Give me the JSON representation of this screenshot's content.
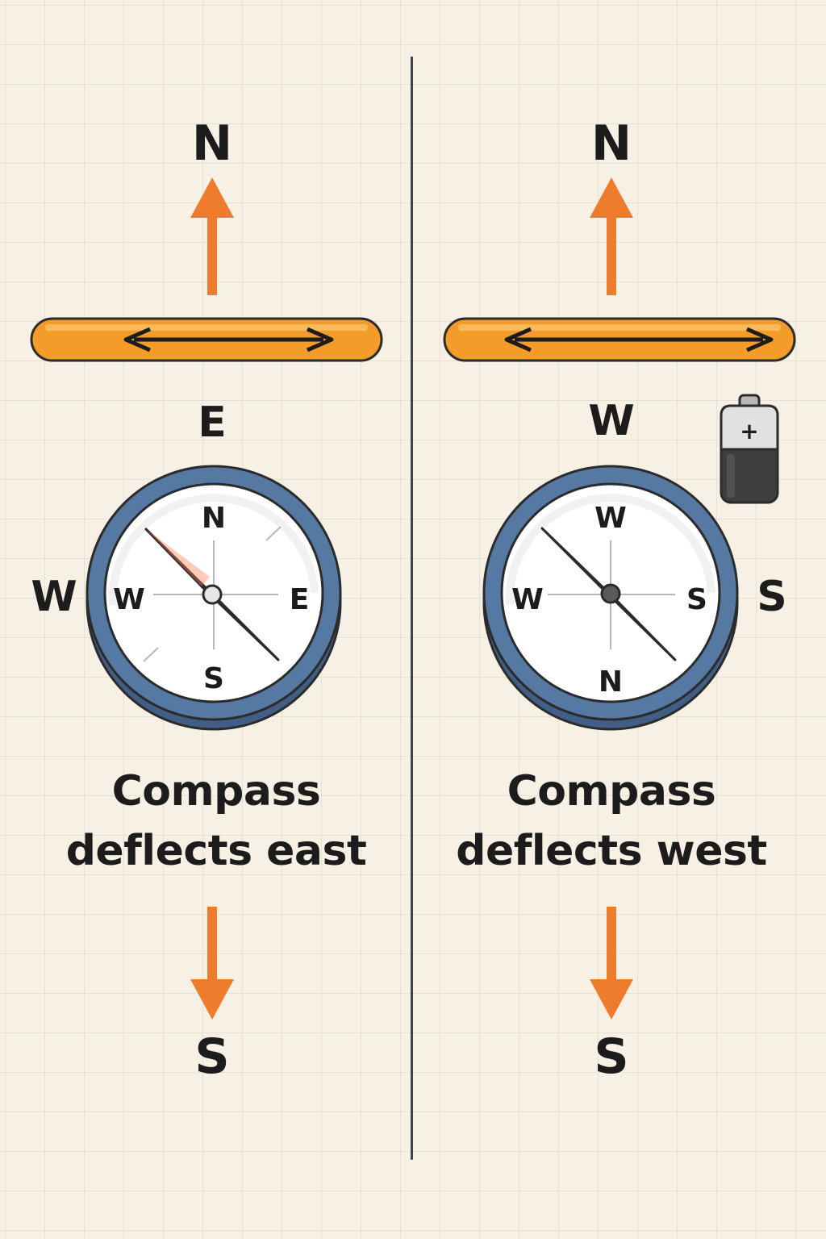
{
  "left": {
    "top_label": "N",
    "bottom_label": "S",
    "wire_label": "E",
    "outer_left_label": "W",
    "dial": {
      "north": "N",
      "west": "W",
      "east": "E",
      "south": "S"
    },
    "caption_line1": "Compass",
    "caption_line2": "deflects east"
  },
  "right": {
    "top_label": "N",
    "bottom_label": "S",
    "wire_label": "W",
    "outer_right_label": "S",
    "battery_symbol": "+",
    "dial": {
      "north": "W",
      "west": "W",
      "east": "S",
      "south": "N"
    },
    "caption_line1": "Compass",
    "caption_line2": "deflects west"
  },
  "colors": {
    "background": "#f6f1e4",
    "arrow": "#ef7b2c",
    "wire": "#f39c2a",
    "compass_ring": "#5679a3",
    "needle_north": "#ef5a2a",
    "divider": "#3c4349"
  }
}
